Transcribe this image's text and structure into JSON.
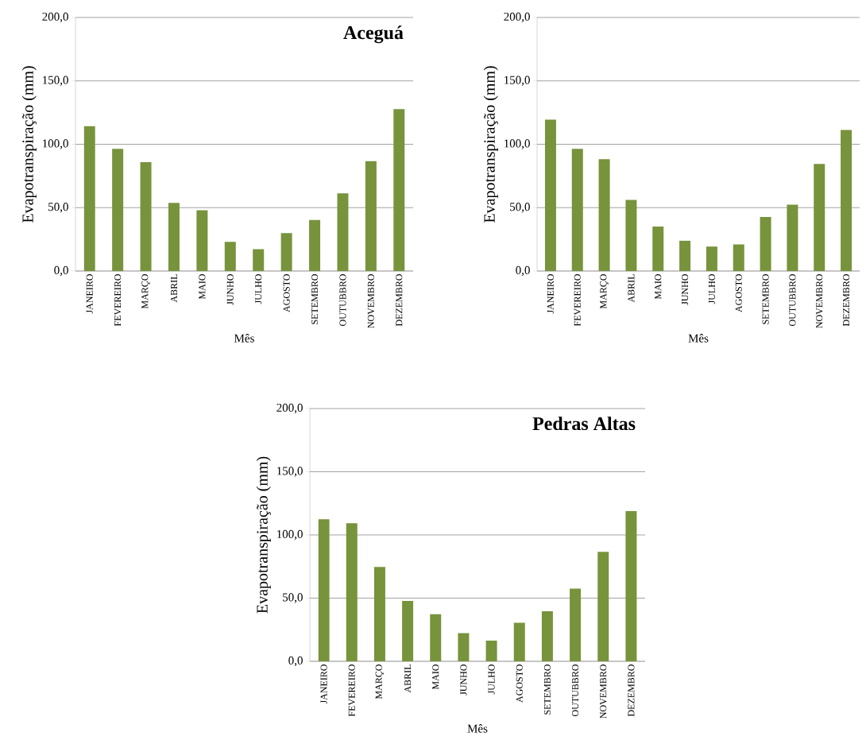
{
  "chart_data": [
    {
      "type": "bar",
      "title": "Aceguá",
      "xlabel": "Mês",
      "ylabel": "Evapotranspiração (mm)",
      "categories": [
        "JANEIRO",
        "FEVEREIRO",
        "MARÇO",
        "ABRIL",
        "MAIO",
        "JUNHO",
        "JULHO",
        "AGOSTO",
        "SETEMBRO",
        "OUTUBBRO",
        "NOVEMBRO",
        "DEZEMBRO"
      ],
      "values": [
        114.3,
        96.4,
        85.9,
        53.8,
        47.9,
        23.1,
        17.2,
        30.0,
        40.3,
        61.3,
        86.6,
        127.7
      ],
      "color": "#77933c",
      "ylim": [
        0,
        200
      ],
      "yticks": [
        {
          "value": 0,
          "label": "0,0"
        },
        {
          "value": 50,
          "label": "50,0"
        },
        {
          "value": 100,
          "label": "100,0"
        },
        {
          "value": 150,
          "label": "150,0"
        },
        {
          "value": 200,
          "label": "200,0"
        }
      ],
      "grid": "y"
    },
    {
      "type": "bar",
      "xlabel": "Mês",
      "ylabel": "Evapotranspiração (mm)",
      "categories": [
        "JANEIRO",
        "FEVEREIRO",
        "MARÇO",
        "ABRIL",
        "MAIO",
        "JUNHO",
        "JULHO",
        "AGOSTO",
        "SETEMBRO",
        "OUTUBBRO",
        "NOVEMBRO",
        "DEZEMBRO"
      ],
      "values": [
        119.5,
        96.4,
        88.2,
        56.1,
        35.1,
        23.9,
        19.3,
        21.0,
        42.6,
        52.3,
        84.5,
        111.3
      ],
      "color": "#77933c",
      "ylim": [
        0,
        200
      ],
      "yticks": [
        {
          "value": 0,
          "label": "0,0"
        },
        {
          "value": 50,
          "label": "50,0"
        },
        {
          "value": 100,
          "label": "100,0"
        },
        {
          "value": 150,
          "label": "150,0"
        },
        {
          "value": 200,
          "label": "200,0"
        }
      ],
      "grid": "y"
    },
    {
      "type": "bar",
      "title": "Pedras Altas",
      "xlabel": "Mês",
      "ylabel": "Evapotranspiração (mm)",
      "categories": [
        "JANEIRO",
        "FEVEREIRO",
        "MARÇO",
        "ABRIL",
        "MAIO",
        "JUNHO",
        "JULHO",
        "AGOSTO",
        "SETEMBRO",
        "OUTUBBRO",
        "NOVEMBRO",
        "DEZEMBRO"
      ],
      "values": [
        112.4,
        109.3,
        74.7,
        47.8,
        37.3,
        22.3,
        16.4,
        30.5,
        39.6,
        57.5,
        86.7,
        118.9
      ],
      "color": "#77933c",
      "ylim": [
        0,
        200
      ],
      "yticks": [
        {
          "value": 0,
          "label": "0,0"
        },
        {
          "value": 50,
          "label": "50,0"
        },
        {
          "value": 100,
          "label": "100,0"
        },
        {
          "value": 150,
          "label": "150,0"
        },
        {
          "value": 200,
          "label": "200,0"
        }
      ],
      "grid": "y"
    }
  ]
}
